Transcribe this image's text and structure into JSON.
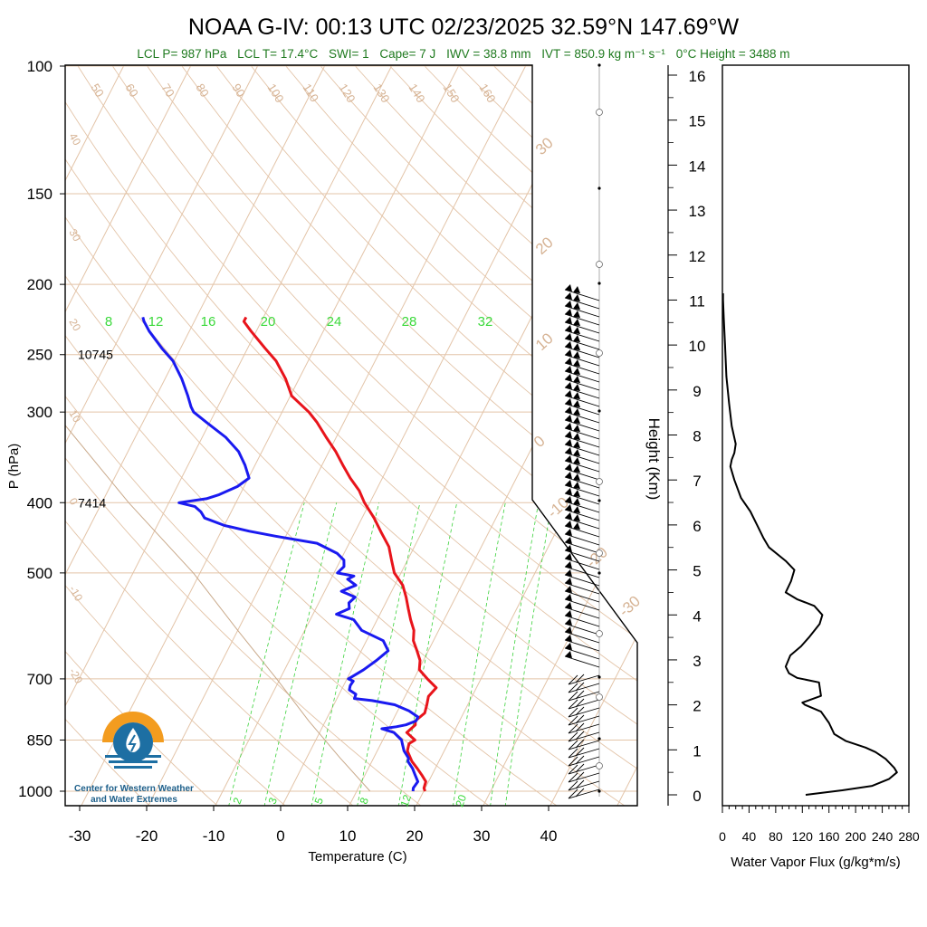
{
  "header": {
    "title": "NOAA G-IV: 00:13 UTC 02/23/2025  32.59°N 147.69°W",
    "params": [
      "LCL P= 987 hPa",
      "LCL T= 17.4°C",
      "SWI= 1",
      "Cape= 7 J",
      "IWV = 38.8 mm",
      "IVT = 850.9 kg m⁻¹ s⁻¹",
      "0°C Height = 3488 m"
    ]
  },
  "colors": {
    "temperature": "#e8141b",
    "dewpoint": "#1a1af0",
    "grid": "#e3c4a8",
    "mixing_ratio": "#3ad23a",
    "header_params": "#1f7a1f",
    "text": "#000000"
  },
  "logo": {
    "icon": "water-drop-sun-logo-icon",
    "text": [
      "Center for Western Weather",
      "and Water Extremes"
    ]
  },
  "chart_data": [
    {
      "type": "line",
      "subtype": "skew-T log-P sounding",
      "xlabel": "Temperature (C)",
      "ylabel": "P (hPa)",
      "xlim": [
        -34,
        52
      ],
      "ylim": [
        1050,
        100
      ],
      "y_scale": "log",
      "x_ticks": [
        -30,
        -20,
        -10,
        0,
        10,
        20,
        30,
        40
      ],
      "y_ticks": [
        1000,
        850,
        700,
        500,
        400,
        300,
        250,
        200,
        150,
        100
      ],
      "height_labels": [
        {
          "p": 250,
          "text": "10745"
        },
        {
          "p": 400,
          "text": "7414"
        }
      ],
      "mixing_ratio_top_labels": [
        8,
        12,
        16,
        20,
        24,
        28,
        32
      ],
      "mixing_ratio_bottom_labels": [
        2,
        3,
        5,
        8,
        12,
        20
      ],
      "isotherm_labels": [
        30,
        20,
        10,
        0,
        -10,
        -20,
        -30
      ],
      "dry_adiabat_labels": [
        50,
        60,
        70,
        80,
        90,
        100,
        110,
        120,
        130,
        140,
        150,
        160
      ],
      "theta_left_labels": [
        40,
        30,
        20,
        10,
        0,
        -10,
        -20
      ],
      "series": [
        {
          "name": "Temperature",
          "points": [
            [
              1000,
              20.2
            ],
            [
              990,
              19.8
            ],
            [
              970,
              19.6
            ],
            [
              950,
              18.5
            ],
            [
              930,
              17.3
            ],
            [
              910,
              16.0
            ],
            [
              900,
              15.5
            ],
            [
              880,
              14.5
            ],
            [
              860,
              14.2
            ],
            [
              850,
              14.8
            ],
            [
              830,
              13.0
            ],
            [
              810,
              13.7
            ],
            [
              800,
              13.4
            ],
            [
              780,
              14.2
            ],
            [
              760,
              13.9
            ],
            [
              740,
              13.5
            ],
            [
              720,
              14.0
            ],
            [
              700,
              12.0
            ],
            [
              680,
              10.1
            ],
            [
              660,
              9.5
            ],
            [
              640,
              8.3
            ],
            [
              620,
              7.0
            ],
            [
              600,
              6.3
            ],
            [
              580,
              5.0
            ],
            [
              560,
              3.8
            ],
            [
              540,
              2.6
            ],
            [
              520,
              1.2
            ],
            [
              500,
              -1.0
            ],
            [
              480,
              -2.4
            ],
            [
              460,
              -3.8
            ],
            [
              440,
              -6.0
            ],
            [
              420,
              -8.2
            ],
            [
              400,
              -10.8
            ],
            [
              385,
              -12.5
            ],
            [
              370,
              -14.8
            ],
            [
              355,
              -16.9
            ],
            [
              340,
              -19.0
            ],
            [
              325,
              -21.5
            ],
            [
              310,
              -24.0
            ],
            [
              300,
              -26.0
            ],
            [
              285,
              -29.8
            ],
            [
              270,
              -32.0
            ],
            [
              255,
              -34.8
            ],
            [
              245,
              -37.4
            ],
            [
              232,
              -40.8
            ],
            [
              225,
              -42.6
            ],
            [
              222,
              -42.6
            ]
          ]
        },
        {
          "name": "Dewpoint",
          "points": [
            [
              1000,
              18.4
            ],
            [
              990,
              18.2
            ],
            [
              970,
              18.4
            ],
            [
              950,
              17.5
            ],
            [
              930,
              16.6
            ],
            [
              910,
              15.4
            ],
            [
              900,
              15.2
            ],
            [
              880,
              14.0
            ],
            [
              860,
              13.2
            ],
            [
              850,
              12.8
            ],
            [
              830,
              11.1
            ],
            [
              820,
              9.0
            ],
            [
              815,
              11.0
            ],
            [
              810,
              12.3
            ],
            [
              800,
              13.5
            ],
            [
              790,
              13.5
            ],
            [
              775,
              11.7
            ],
            [
              760,
              9.1
            ],
            [
              750,
              5.4
            ],
            [
              745,
              2.6
            ],
            [
              735,
              2.5
            ],
            [
              725,
              1.2
            ],
            [
              715,
              1.0
            ],
            [
              705,
              1.1
            ],
            [
              700,
              0.2
            ],
            [
              690,
              1.0
            ],
            [
              680,
              1.8
            ],
            [
              660,
              3.0
            ],
            [
              640,
              4.0
            ],
            [
              620,
              2.5
            ],
            [
              600,
              -1.5
            ],
            [
              580,
              -3.5
            ],
            [
              570,
              -6.5
            ],
            [
              560,
              -5.0
            ],
            [
              550,
              -5.5
            ],
            [
              540,
              -5.0
            ],
            [
              530,
              -7.5
            ],
            [
              520,
              -5.8
            ],
            [
              510,
              -7.5
            ],
            [
              505,
              -6.8
            ],
            [
              500,
              -9.5
            ],
            [
              490,
              -9.0
            ],
            [
              480,
              -9.5
            ],
            [
              470,
              -11.0
            ],
            [
              455,
              -14.8
            ],
            [
              445,
              -21.5
            ],
            [
              438,
              -25.8
            ],
            [
              430,
              -30.0
            ],
            [
              420,
              -33.5
            ],
            [
              412,
              -34.5
            ],
            [
              405,
              -35.8
            ],
            [
              400,
              -38.5
            ],
            [
              395,
              -34.7
            ],
            [
              390,
              -33.1
            ],
            [
              380,
              -31.0
            ],
            [
              370,
              -29.9
            ],
            [
              355,
              -31.5
            ],
            [
              340,
              -33.5
            ],
            [
              325,
              -36.5
            ],
            [
              310,
              -40.5
            ],
            [
              300,
              -43.2
            ],
            [
              295,
              -44.0
            ],
            [
              285,
              -45.3
            ],
            [
              270,
              -47.5
            ],
            [
              255,
              -50.2
            ],
            [
              245,
              -52.8
            ],
            [
              232,
              -56.0
            ],
            [
              225,
              -57.5
            ],
            [
              222,
              -58.0
            ]
          ]
        }
      ]
    },
    {
      "type": "line",
      "subtype": "wind barbs",
      "note": "wind barbs along right edge of sounding panel, 1000-220 hPa"
    },
    {
      "type": "line",
      "xlabel": "Water Vapor Flux (g/kg*m/s)",
      "ylabel": "Height (Km)",
      "xlim": [
        0,
        280
      ],
      "ylim": [
        -0.3,
        16.4
      ],
      "x_ticks": [
        0,
        40,
        80,
        120,
        160,
        200,
        240,
        280
      ],
      "y_ticks": [
        0,
        1,
        2,
        3,
        4,
        5,
        6,
        7,
        8,
        9,
        10,
        11,
        12,
        13,
        14,
        15,
        16
      ],
      "series": [
        {
          "name": "",
          "points": [
            [
              125,
              0
            ],
            [
              180,
              0.1
            ],
            [
              225,
              0.2
            ],
            [
              250,
              0.35
            ],
            [
              262,
              0.5
            ],
            [
              258,
              0.6
            ],
            [
              245,
              0.8
            ],
            [
              230,
              0.95
            ],
            [
              215,
              1.05
            ],
            [
              185,
              1.2
            ],
            [
              168,
              1.35
            ],
            [
              160,
              1.6
            ],
            [
              148,
              1.85
            ],
            [
              124,
              2.0
            ],
            [
              120,
              2.05
            ],
            [
              148,
              2.2
            ],
            [
              145,
              2.5
            ],
            [
              112,
              2.6
            ],
            [
              100,
              2.7
            ],
            [
              95,
              2.85
            ],
            [
              102,
              3.1
            ],
            [
              118,
              3.3
            ],
            [
              130,
              3.5
            ],
            [
              146,
              3.8
            ],
            [
              150,
              4.0
            ],
            [
              138,
              4.2
            ],
            [
              112,
              4.35
            ],
            [
              95,
              4.5
            ],
            [
              103,
              4.75
            ],
            [
              108,
              5.0
            ],
            [
              95,
              5.2
            ],
            [
              70,
              5.5
            ],
            [
              62,
              5.7
            ],
            [
              52,
              6.0
            ],
            [
              42,
              6.3
            ],
            [
              28,
              6.6
            ],
            [
              18,
              7.0
            ],
            [
              12,
              7.3
            ],
            [
              14,
              7.45
            ],
            [
              18,
              7.6
            ],
            [
              20,
              7.8
            ],
            [
              14,
              8.2
            ],
            [
              10,
              8.7
            ],
            [
              6,
              9.3
            ],
            [
              4,
              10.0
            ],
            [
              2,
              10.6
            ],
            [
              1,
              11.0
            ],
            [
              1,
              11.15
            ]
          ]
        }
      ]
    }
  ]
}
